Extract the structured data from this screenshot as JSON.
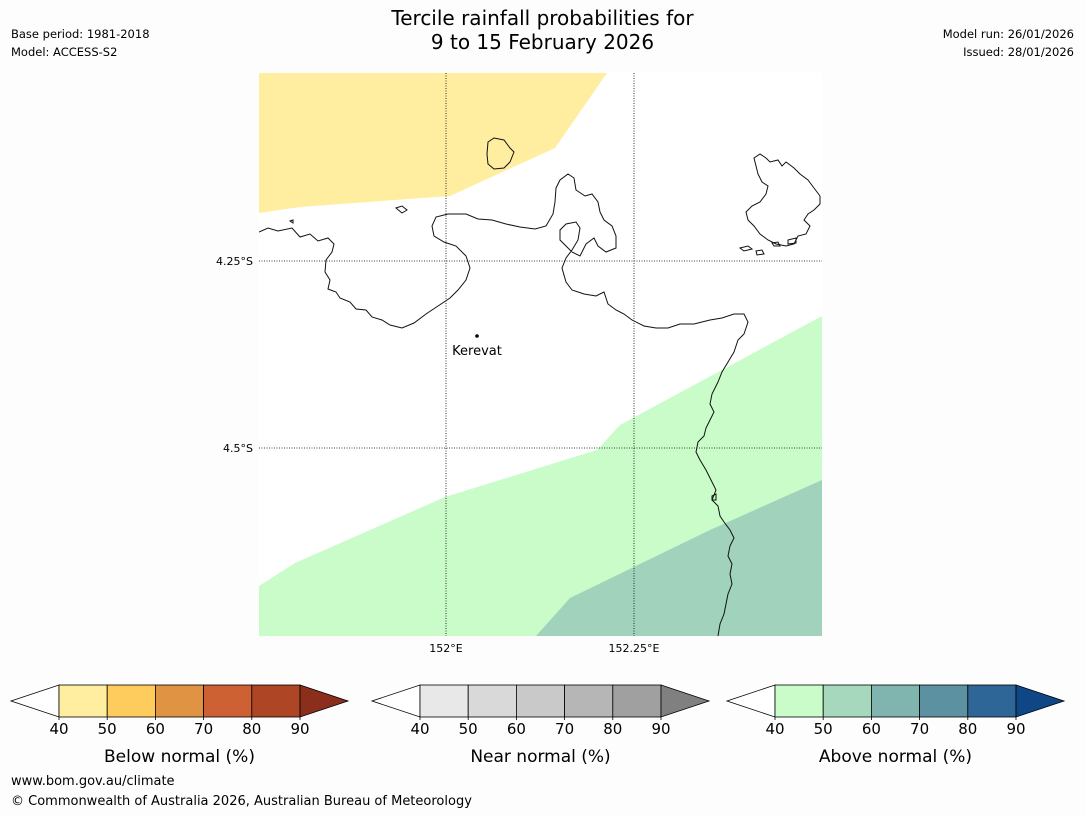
{
  "header": {
    "title_line1": "Tercile rainfall probabilities for",
    "title_line2": "9 to 15 February 2026",
    "base_period": "Base period: 1981-2018",
    "model": "Model: ACCESS-S2",
    "model_run": "Model run: 26/01/2026",
    "issued": "Issued: 28/01/2026"
  },
  "map": {
    "lat_labels": [
      "4.25°S",
      "4.5°S"
    ],
    "lon_labels": [
      "152°E",
      "152.25°E"
    ],
    "place_label": "Kerevat",
    "region_colors": {
      "below_normal_40_50": "#ffeda0",
      "above_normal_40_50": "#c9fcc9",
      "above_normal_50_60": "#a1d2bc"
    }
  },
  "legends": [
    {
      "label": "Below normal (%)",
      "ticks": [
        "40",
        "50",
        "60",
        "70",
        "80",
        "90"
      ],
      "colors": [
        "#ffeda0",
        "#fecc5c",
        "#e09343",
        "#cd6133",
        "#ae4525",
        "#8c2e1c"
      ]
    },
    {
      "label": "Near normal (%)",
      "ticks": [
        "40",
        "50",
        "60",
        "70",
        "80",
        "90"
      ],
      "colors": [
        "#e8e8e8",
        "#d9d9d9",
        "#c9c9c9",
        "#b6b6b6",
        "#a0a0a0",
        "#808080"
      ]
    },
    {
      "label": "Above normal (%)",
      "ticks": [
        "40",
        "50",
        "60",
        "70",
        "80",
        "90"
      ],
      "colors": [
        "#c9fcc9",
        "#a6d8be",
        "#80b5af",
        "#5b91a0",
        "#2f6698",
        "#0f4686"
      ]
    }
  ],
  "footer": {
    "website": "www.bom.gov.au/climate",
    "copyright": "© Commonwealth of Australia 2026, Australian Bureau of Meteorology"
  }
}
